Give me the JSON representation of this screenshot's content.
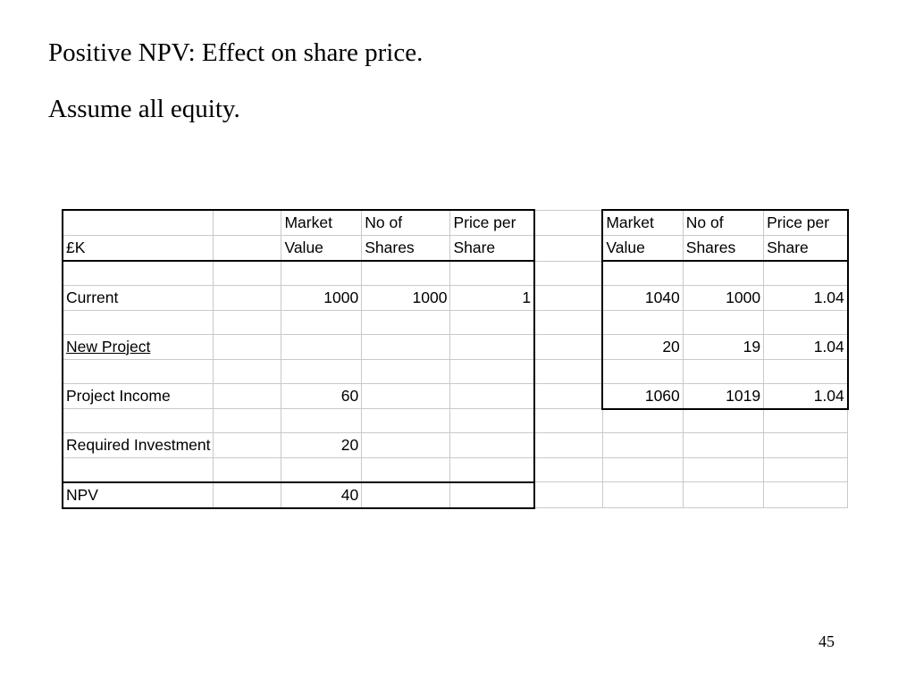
{
  "slide": {
    "line1": "Positive NPV: Effect on share price.",
    "line2": "Assume all equity.",
    "page_number": "45"
  },
  "table": {
    "unit_label": "£K",
    "headers": {
      "market": "Market",
      "value": "Value",
      "no_of": "No of",
      "shares": "Shares",
      "price_per": "Price per",
      "share": "Share"
    },
    "left": {
      "current": {
        "label": "Current",
        "market_value": "1000",
        "shares": "1000",
        "price": "1"
      },
      "new_project": {
        "label": "New Project"
      },
      "project_income": {
        "label": "Project Income",
        "value": "60"
      },
      "required_investment": {
        "label": "Required Investment",
        "value": "20"
      },
      "npv": {
        "label": "NPV",
        "value": "40"
      }
    },
    "right": {
      "current": {
        "market_value": "1040",
        "shares": "1000",
        "price": "1.04"
      },
      "new_project": {
        "market_value": "20",
        "shares": "19",
        "price": "1.04"
      },
      "total": {
        "market_value": "1060",
        "shares": "1019",
        "price": "1.04"
      }
    }
  }
}
